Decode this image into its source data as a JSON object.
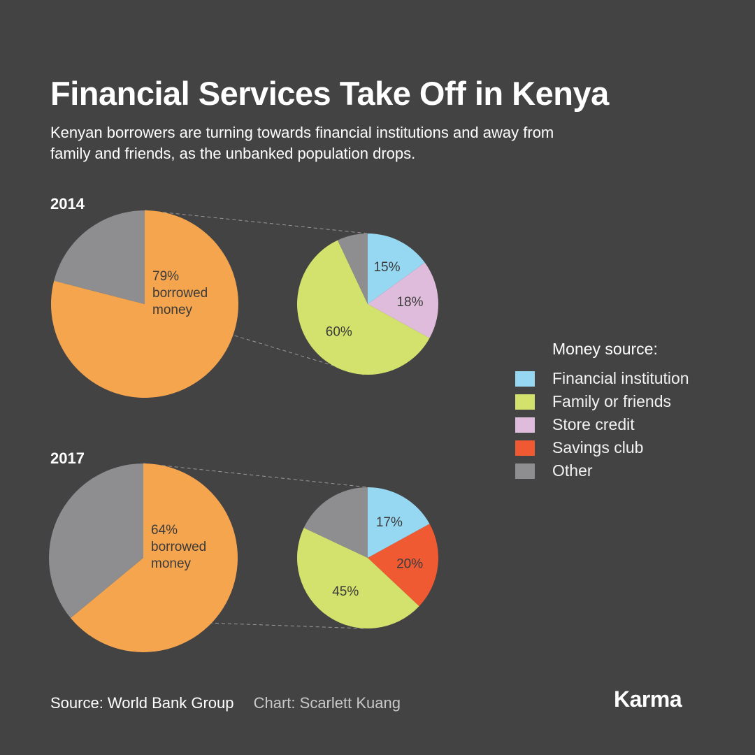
{
  "header": {
    "title": "Financial Services Take Off in Kenya",
    "subtitle": "Kenyan borrowers are turning towards financial institutions and away from family and friends, as the unbanked population drops."
  },
  "legend": {
    "title": "Money source:",
    "items": [
      {
        "label": "Financial institution",
        "color": "#96d7f2"
      },
      {
        "label": "Family or friends",
        "color": "#d2e26d"
      },
      {
        "label": "Store credit",
        "color": "#dfbcdb"
      },
      {
        "label": "Savings club",
        "color": "#f05a32"
      },
      {
        "label": "Other",
        "color": "#8e8e90"
      }
    ]
  },
  "colors": {
    "borrowed": "#f6a54f",
    "not_borrowed": "#8e8e90",
    "connector": "#9a9a9a"
  },
  "chart_data": [
    {
      "type": "pie",
      "year": "2014",
      "borrowed_percent": 79,
      "borrowed_label": [
        "79%",
        "borrowed",
        "money"
      ],
      "breakdown": [
        {
          "source": "Financial institution",
          "value": 15,
          "label": "15%"
        },
        {
          "source": "Store credit",
          "value": 18,
          "label": "18%"
        },
        {
          "source": "Family or friends",
          "value": 60,
          "label": "60%"
        },
        {
          "source": "Other",
          "value": 7,
          "label": ""
        }
      ]
    },
    {
      "type": "pie",
      "year": "2017",
      "borrowed_percent": 64,
      "borrowed_label": [
        "64%",
        "borrowed",
        "money"
      ],
      "breakdown": [
        {
          "source": "Financial institution",
          "value": 17,
          "label": "17%"
        },
        {
          "source": "Savings club",
          "value": 20,
          "label": "20%"
        },
        {
          "source": "Family or friends",
          "value": 45,
          "label": "45%"
        },
        {
          "source": "Other",
          "value": 18,
          "label": ""
        }
      ]
    }
  ],
  "footer": {
    "source": "Source: World Bank Group",
    "credit": "Chart: Scarlett Kuang",
    "brand": "Karma"
  }
}
